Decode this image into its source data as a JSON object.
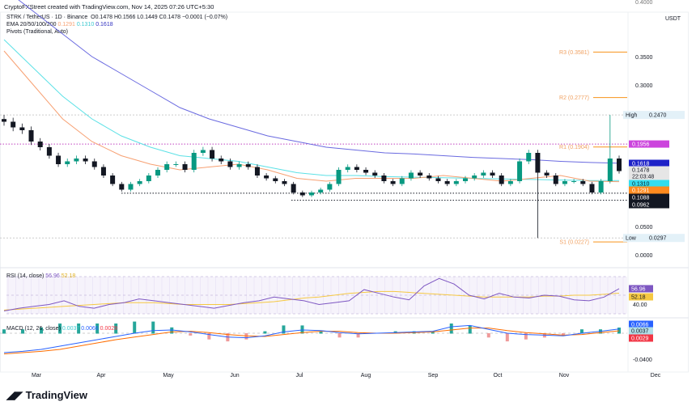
{
  "header": {
    "credit": "CryptoFXStreet created with TradingView.com, Nov 14, 2025 07:26 UTC+5:30",
    "symbol": "STRK / TetherUS · 1D · Binance",
    "ohlc": "O0.1478  H0.1566  L0.1449  C0.1478  −0.0001 (−0.07%)",
    "ema_label": "EMA 20/50/100/200",
    "ema_values": [
      "0.1291",
      "0.1310",
      "0.1618"
    ],
    "pivots_label": "Pivots (Traditional, Auto)"
  },
  "colors": {
    "up": "#089981",
    "down": "#131722",
    "ema50": "#f7a072",
    "ema100": "#5ce1e6",
    "ema200": "#6a6ae0",
    "pivot": "#f7931a",
    "rsi": "#7e57c2",
    "rsi_ma": "#f5c842",
    "macd": "#2962ff",
    "signal": "#ff6d00"
  },
  "chart_data": [
    {
      "type": "candlestick",
      "title": "STRK / TetherUS",
      "ylabel": "USDT",
      "ylim": [
        0,
        0.45
      ],
      "y_ticks": [
        "0.3500",
        "0.3000",
        "0.0500",
        "0.0000"
      ],
      "x_ticks": [
        "Mar",
        "Apr",
        "May",
        "Jun",
        "Jul",
        "Aug",
        "Sep",
        "Oct",
        "Nov",
        "Dec"
      ],
      "close": [
        0.235,
        0.225,
        0.22,
        0.2,
        0.19,
        0.175,
        0.16,
        0.165,
        0.17,
        0.165,
        0.155,
        0.14,
        0.125,
        0.115,
        0.125,
        0.13,
        0.14,
        0.15,
        0.16,
        0.16,
        0.15,
        0.18,
        0.185,
        0.17,
        0.165,
        0.155,
        0.16,
        0.155,
        0.14,
        0.135,
        0.13,
        0.125,
        0.11,
        0.105,
        0.11,
        0.115,
        0.125,
        0.15,
        0.155,
        0.15,
        0.145,
        0.14,
        0.13,
        0.125,
        0.135,
        0.145,
        0.14,
        0.135,
        0.13,
        0.125,
        0.13,
        0.135,
        0.14,
        0.145,
        0.14,
        0.125,
        0.13,
        0.165,
        0.18,
        0.145,
        0.14,
        0.125,
        0.13,
        0.13,
        0.125,
        0.11,
        0.13,
        0.17,
        0.1478
      ],
      "ema50": [
        0.36,
        0.3,
        0.24,
        0.2,
        0.175,
        0.16,
        0.15,
        0.155,
        0.16,
        0.15,
        0.135,
        0.13,
        0.135,
        0.135,
        0.135,
        0.14,
        0.135,
        0.13,
        0.135,
        0.14,
        0.13,
        0.1291
      ],
      "ema100": [
        0.38,
        0.33,
        0.28,
        0.24,
        0.21,
        0.19,
        0.175,
        0.17,
        0.165,
        0.155,
        0.145,
        0.14,
        0.14,
        0.138,
        0.137,
        0.136,
        0.135,
        0.134,
        0.133,
        0.132,
        0.131,
        0.131
      ],
      "ema200": [
        0.47,
        0.43,
        0.39,
        0.35,
        0.32,
        0.29,
        0.26,
        0.24,
        0.225,
        0.21,
        0.2,
        0.19,
        0.185,
        0.18,
        0.178,
        0.175,
        0.172,
        0.17,
        0.168,
        0.165,
        0.163,
        0.1618
      ],
      "pivots": [
        {
          "label": "R3 (0.3581)",
          "value": 0.3581
        },
        {
          "label": "R2 (0.2777)",
          "value": 0.2777
        },
        {
          "label": "R1 (0.1904)",
          "value": 0.1904
        },
        {
          "label": "S1 (0.0227)",
          "value": 0.0227
        }
      ],
      "price_labels": [
        {
          "text": "High",
          "value": "0.2470"
        },
        {
          "text": "Low",
          "value": "0.0297"
        }
      ],
      "axis_badges": [
        "0.1956",
        "0.1618",
        "0.1478",
        "22:03:48",
        "0.1310",
        "0.1291",
        "0.1088",
        "0.0962"
      ],
      "support_levels": [
        0.1088,
        0.0962
      ],
      "resistance_level": 0.1956
    },
    {
      "type": "line",
      "title": "RSI (14, close)",
      "values_label": [
        "56.96",
        "52.18"
      ],
      "ylim": [
        30,
        70
      ],
      "y_ticks": [
        "40.00"
      ],
      "rsi": [
        33,
        36,
        38,
        40,
        44,
        38,
        36,
        40,
        42,
        46,
        44,
        42,
        40,
        38,
        36,
        39,
        42,
        44,
        48,
        46,
        44,
        40,
        42,
        44,
        56,
        52,
        48,
        45,
        60,
        68,
        62,
        50,
        46,
        52,
        48,
        47,
        50,
        49,
        45,
        44,
        48,
        56.96
      ],
      "rsi_ma": [
        34,
        35,
        36,
        37,
        38,
        39,
        40,
        41,
        42,
        42,
        42,
        41,
        40,
        40,
        40,
        40,
        41,
        42,
        43,
        45,
        47,
        48,
        50,
        52,
        53,
        54,
        54,
        53,
        52,
        51,
        50,
        49,
        48,
        48,
        48,
        48,
        49,
        49,
        50,
        50,
        51,
        52.18
      ]
    },
    {
      "type": "line",
      "title": "MACD (12, 26, close)",
      "values_label": [
        "0.0037",
        "0.0066",
        "0.0029"
      ],
      "y_ticks": [
        "-0.0400"
      ],
      "badges": [
        "0.0066",
        "0.0037",
        "0.0029"
      ],
      "macd": [
        -0.03,
        -0.028,
        -0.025,
        -0.02,
        -0.015,
        -0.01,
        -0.005,
        0,
        0.004,
        0.005,
        0.002,
        -0.002,
        -0.006,
        -0.007,
        -0.004,
        0.002,
        0.005,
        0.004,
        0.001,
        -0.001,
        0,
        0.001,
        0.002,
        0.003,
        0.01,
        0.012,
        0.006,
        0,
        -0.002,
        -0.003,
        -0.004,
        0,
        0.003,
        0.0066
      ],
      "signal": [
        -0.032,
        -0.03,
        -0.028,
        -0.025,
        -0.02,
        -0.015,
        -0.01,
        -0.006,
        -0.002,
        0.002,
        0.003,
        0.001,
        -0.002,
        -0.004,
        -0.005,
        -0.002,
        0.001,
        0.003,
        0.003,
        0.001,
        0,
        0,
        0.001,
        0.002,
        0.005,
        0.008,
        0.008,
        0.004,
        0.001,
        -0.001,
        -0.003,
        -0.002,
        0.001,
        0.0037
      ]
    }
  ],
  "footer": {
    "brand": "TradingView"
  }
}
